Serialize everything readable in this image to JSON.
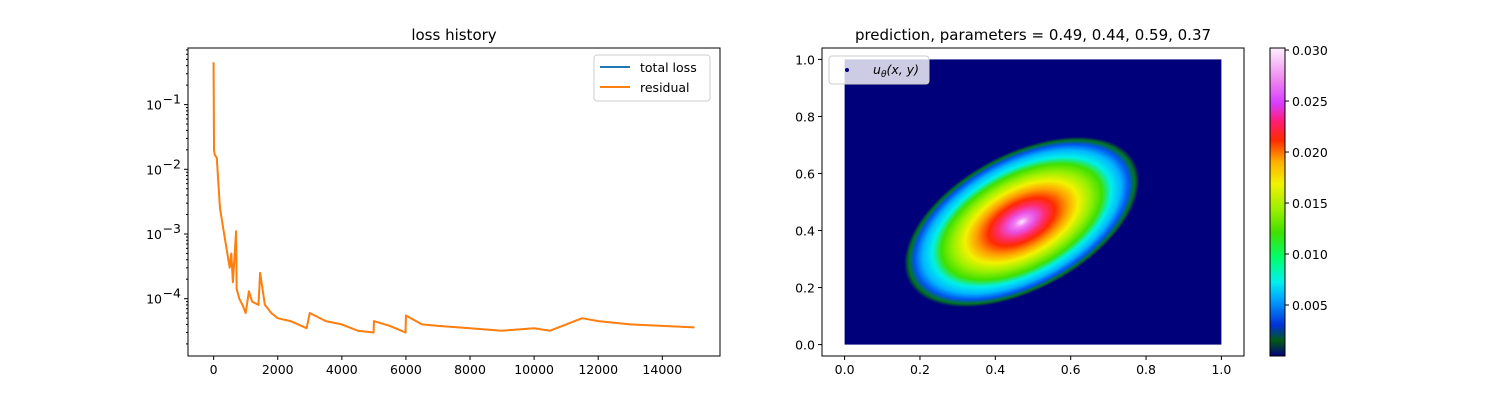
{
  "chart_data": [
    {
      "type": "line",
      "title": "loss history",
      "xlabel": "",
      "ylabel": "",
      "yscale": "log",
      "xlim": [
        -800,
        15800
      ],
      "ylim": [
        1.3e-05,
        0.75
      ],
      "x_ticks": [
        0,
        2000,
        4000,
        6000,
        8000,
        10000,
        12000,
        14000
      ],
      "x_tick_labels": [
        "0",
        "2000",
        "4000",
        "6000",
        "8000",
        "10000",
        "12000",
        "14000"
      ],
      "y_ticks": [
        0.0001,
        0.001,
        0.01,
        0.1
      ],
      "y_tick_labels": [
        "10",
        "10",
        "10",
        "10"
      ],
      "y_tick_exponents": [
        "−4",
        "−3",
        "−2",
        "−1"
      ],
      "legend_position": "top-right",
      "series": [
        {
          "name": "total loss",
          "color": "#1f77b4",
          "x": [
            0,
            10,
            30,
            60,
            100,
            150,
            200,
            300,
            400,
            500,
            550,
            600,
            700,
            720,
            800,
            900,
            1000,
            1100,
            1200,
            1400,
            1450,
            1600,
            1800,
            2000,
            2400,
            2900,
            3000,
            3500,
            4000,
            4500,
            4990,
            5000,
            5500,
            5990,
            6000,
            6500,
            7000,
            8000,
            9000,
            10000,
            10500,
            11000,
            11500,
            12000,
            13000,
            14000,
            15000
          ],
          "y": [
            0.45,
            0.02,
            0.017,
            0.016,
            0.015,
            0.006,
            0.0025,
            0.0012,
            0.0006,
            0.0003,
            0.0005,
            0.00018,
            0.0011,
            0.00014,
            0.0001,
            8e-05,
            6e-05,
            0.00013,
            9e-05,
            8e-05,
            0.00025,
            8e-05,
            6e-05,
            5e-05,
            4.5e-05,
            3.5e-05,
            6e-05,
            4.5e-05,
            4e-05,
            3.2e-05,
            3e-05,
            4.5e-05,
            3.8e-05,
            3e-05,
            5.5e-05,
            4e-05,
            3.8e-05,
            3.5e-05,
            3.2e-05,
            3.5e-05,
            3.2e-05,
            4e-05,
            5e-05,
            4.5e-05,
            4e-05,
            3.8e-05,
            3.6e-05
          ]
        },
        {
          "name": "residual",
          "color": "#ff7f0e",
          "x": [
            0,
            10,
            30,
            60,
            100,
            150,
            200,
            300,
            400,
            500,
            550,
            600,
            700,
            720,
            800,
            900,
            1000,
            1100,
            1200,
            1400,
            1450,
            1600,
            1800,
            2000,
            2400,
            2900,
            3000,
            3500,
            4000,
            4500,
            4990,
            5000,
            5500,
            5990,
            6000,
            6500,
            7000,
            8000,
            9000,
            10000,
            10500,
            11000,
            11500,
            12000,
            13000,
            14000,
            15000
          ],
          "y": [
            0.45,
            0.02,
            0.017,
            0.016,
            0.015,
            0.006,
            0.0025,
            0.0012,
            0.0006,
            0.0003,
            0.0005,
            0.00018,
            0.0011,
            0.00014,
            0.0001,
            8e-05,
            6e-05,
            0.00013,
            9e-05,
            8e-05,
            0.00025,
            8e-05,
            6e-05,
            5e-05,
            4.5e-05,
            3.5e-05,
            6e-05,
            4.5e-05,
            4e-05,
            3.2e-05,
            3e-05,
            4.5e-05,
            3.8e-05,
            3e-05,
            5.5e-05,
            4e-05,
            3.8e-05,
            3.5e-05,
            3.2e-05,
            3.5e-05,
            3.2e-05,
            4e-05,
            5e-05,
            4.5e-05,
            4e-05,
            3.8e-05,
            3.6e-05
          ]
        }
      ]
    },
    {
      "type": "heatmap",
      "title": "prediction, parameters = 0.49, 0.44, 0.59, 0.37",
      "xlabel": "",
      "ylabel": "",
      "xlim": [
        -0.06,
        1.06
      ],
      "ylim": [
        -0.04,
        1.04
      ],
      "x_ticks": [
        0.0,
        0.2,
        0.4,
        0.6,
        0.8,
        1.0
      ],
      "x_tick_labels": [
        "0.0",
        "0.2",
        "0.4",
        "0.6",
        "0.8",
        "1.0"
      ],
      "y_ticks": [
        0.0,
        0.2,
        0.4,
        0.6,
        0.8,
        1.0
      ],
      "y_tick_labels": [
        "0.0",
        "0.2",
        "0.4",
        "0.6",
        "0.8",
        "1.0"
      ],
      "legend_label": "u",
      "legend_label_sub": "θ",
      "legend_label_args": "(x, y)",
      "legend_position": "top-left",
      "peak": {
        "x": 0.47,
        "y": 0.43,
        "value": 0.0302
      },
      "ellipse_axes": {
        "major": 0.34,
        "minor": 0.24,
        "angle_deg": -28
      },
      "colorscale": "gist_ncar",
      "colorbar": {
        "range": [
          0.0,
          0.0302
        ],
        "ticks": [
          0.005,
          0.01,
          0.015,
          0.02,
          0.025,
          0.03
        ],
        "tick_labels": [
          "0.005",
          "0.010",
          "0.015",
          "0.020",
          "0.025",
          "0.030"
        ]
      }
    }
  ]
}
